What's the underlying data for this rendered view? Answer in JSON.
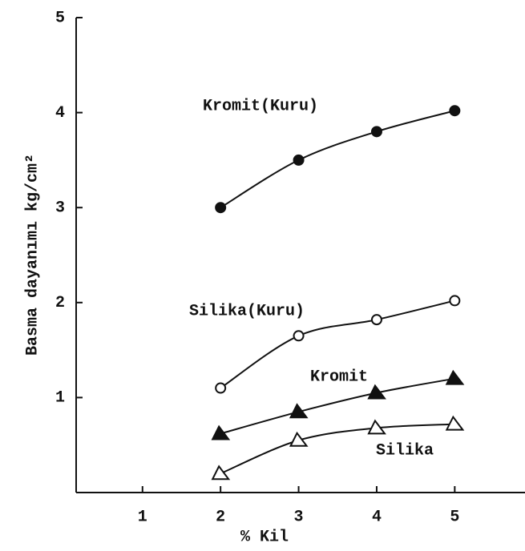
{
  "chart_data": {
    "type": "line",
    "xlabel": "% Kil",
    "ylabel": "Basma dayanımı kg/cm²",
    "xlim": [
      0.15,
      5.9
    ],
    "ylim": [
      0,
      5
    ],
    "xticks": [
      1,
      2,
      3,
      4,
      5
    ],
    "yticks": [
      1,
      2,
      3,
      4,
      5
    ],
    "x": [
      2,
      3,
      4,
      5
    ],
    "series": [
      {
        "name": "Kromit(Kuru)",
        "color": "#111111",
        "marker": "filled-circle",
        "values": [
          3.0,
          3.5,
          3.8,
          4.02
        ]
      },
      {
        "name": "Silika(Kuru)",
        "color": "#111111",
        "marker": "open-circle",
        "values": [
          1.1,
          1.65,
          1.82,
          2.02
        ]
      },
      {
        "name": "Kromit",
        "color": "#111111",
        "marker": "filled-triangle",
        "values": [
          0.62,
          0.85,
          1.05,
          1.2
        ]
      },
      {
        "name": "Silika",
        "color": "#111111",
        "marker": "open-triangle",
        "values": [
          0.2,
          0.55,
          0.68,
          0.72
        ]
      }
    ]
  }
}
